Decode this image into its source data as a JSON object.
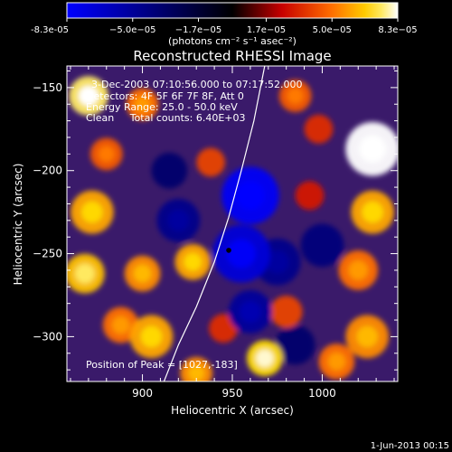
{
  "chart_data": {
    "type": "heatmap",
    "title": "Reconstructed RHESSI Image",
    "xlabel": "Heliocentric X (arcsec)",
    "ylabel": "Heliocentric Y (arcsec)",
    "xlim": [
      858,
      1042
    ],
    "ylim": [
      -327,
      -137
    ],
    "x_ticks": [
      900,
      950,
      1000
    ],
    "y_ticks": [
      -150,
      -200,
      -250,
      -300
    ],
    "colorbar": {
      "label": "(photons cm⁻² s⁻¹ asec⁻²)",
      "range": [
        -8.3e-05,
        8.3e-05
      ],
      "tick_labels": [
        "-8.3e-05",
        "−5.0e−05",
        "−1.7e−05",
        "1.7e−05",
        "5.0e−05",
        "8.3e−05"
      ],
      "tick_values": [
        -8.3e-05,
        -5e-05,
        -1.7e-05,
        1.7e-05,
        5e-05,
        8.3e-05
      ],
      "colormap": "blue-black-red-orange-yellow-white"
    },
    "info_lines": [
      "3-Dec-2003 07:10:56.000 to 07:17:52.000",
      "Detectors: 4F 5F 6F 7F 8F, Att 0",
      "Energy Range: 25.0 - 50.0 keV",
      "Clean     Total counts: 6.40E+03"
    ],
    "peak_text": "Position of Peak = [1027,-183]",
    "marker": {
      "x": 948,
      "y": -248,
      "color": "#000000"
    },
    "limb_curve": {
      "color": "#ffffff",
      "x": [
        912,
        920,
        930,
        940,
        948,
        955,
        962,
        968
      ],
      "y": [
        -327,
        -305,
        -282,
        -255,
        -228,
        -200,
        -170,
        -137
      ]
    },
    "blobs": [
      {
        "x": 1028,
        "y": -187,
        "value": 9e-05,
        "r": 15
      },
      {
        "x": 1028,
        "y": -225,
        "value": 6e-05,
        "r": 12
      },
      {
        "x": 1020,
        "y": -260,
        "value": 5e-05,
        "r": 11
      },
      {
        "x": 1025,
        "y": -300,
        "value": 5.5e-05,
        "r": 12
      },
      {
        "x": 1008,
        "y": -315,
        "value": 5e-05,
        "r": 10
      },
      {
        "x": 870,
        "y": -155,
        "value": 7.5e-05,
        "r": 11
      },
      {
        "x": 872,
        "y": -225,
        "value": 6e-05,
        "r": 12
      },
      {
        "x": 868,
        "y": -262,
        "value": 6.5e-05,
        "r": 11
      },
      {
        "x": 900,
        "y": -262,
        "value": 5.5e-05,
        "r": 10
      },
      {
        "x": 928,
        "y": -255,
        "value": 6e-05,
        "r": 10
      },
      {
        "x": 888,
        "y": -293,
        "value": 5e-05,
        "r": 10
      },
      {
        "x": 905,
        "y": -300,
        "value": 6e-05,
        "r": 12
      },
      {
        "x": 930,
        "y": -322,
        "value": 5.5e-05,
        "r": 9
      },
      {
        "x": 968,
        "y": -313,
        "value": 7e-05,
        "r": 10
      },
      {
        "x": 900,
        "y": -160,
        "value": 5e-05,
        "r": 9
      },
      {
        "x": 880,
        "y": -190,
        "value": 4.5e-05,
        "r": 9
      },
      {
        "x": 938,
        "y": -195,
        "value": 4e-05,
        "r": 8
      },
      {
        "x": 985,
        "y": -155,
        "value": 4.5e-05,
        "r": 9
      },
      {
        "x": 998,
        "y": -175,
        "value": 3.5e-05,
        "r": 8
      },
      {
        "x": 980,
        "y": -285,
        "value": 4e-05,
        "r": 9
      },
      {
        "x": 993,
        "y": -215,
        "value": 3e-05,
        "r": 8
      },
      {
        "x": 945,
        "y": -295,
        "value": 3.5e-05,
        "r": 8
      },
      {
        "x": 960,
        "y": -215,
        "value": -8e-05,
        "r": 16
      },
      {
        "x": 955,
        "y": -250,
        "value": -7e-05,
        "r": 16
      },
      {
        "x": 975,
        "y": -255,
        "value": -4.5e-05,
        "r": 13
      },
      {
        "x": 960,
        "y": -285,
        "value": -5e-05,
        "r": 12
      },
      {
        "x": 1000,
        "y": -245,
        "value": -4e-05,
        "r": 12
      },
      {
        "x": 920,
        "y": -230,
        "value": -4.5e-05,
        "r": 12
      },
      {
        "x": 915,
        "y": -200,
        "value": -3.5e-05,
        "r": 10
      },
      {
        "x": 985,
        "y": -305,
        "value": -3.5e-05,
        "r": 11
      }
    ]
  },
  "footer": {
    "date": "1-Jun-2013 00:15"
  }
}
